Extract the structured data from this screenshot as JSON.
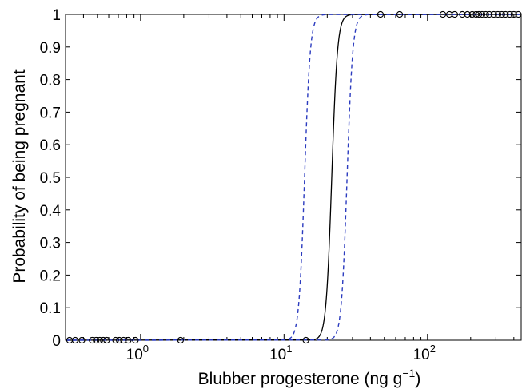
{
  "chart_data": {
    "type": "scatter",
    "title": "",
    "xlabel": "Blubber progesterone (ng g",
    "xlabel_superscript": "−1",
    "xlabel_suffix": ")",
    "ylabel": "Probability of being pregnant",
    "xscale": "log",
    "xlim": [
      0.3,
      450
    ],
    "ylim": [
      0,
      1
    ],
    "x_ticks": [
      {
        "value": 1,
        "base": "10",
        "exp": "0"
      },
      {
        "value": 10,
        "base": "10",
        "exp": "1"
      },
      {
        "value": 100,
        "base": "10",
        "exp": "2"
      }
    ],
    "y_ticks": [
      "0",
      "0.1",
      "0.2",
      "0.3",
      "0.4",
      "0.5",
      "0.6",
      "0.7",
      "0.8",
      "0.9",
      "1"
    ],
    "grid": false,
    "legend": "none",
    "series": [
      {
        "style": "solid",
        "color": "#000000",
        "curve": "logistic",
        "midpoint_x": 21.5,
        "steepness": 22,
        "x_range": [
          16,
          30
        ]
      },
      {
        "style": "dashed",
        "color": "#2b3bbf",
        "curve": "logistic",
        "midpoint_x": 13.9,
        "steepness": 22,
        "x_range": [
          10,
          20
        ]
      },
      {
        "style": "dashed",
        "color": "#2b3bbf",
        "curve": "logistic",
        "midpoint_x": 27.5,
        "steepness": 22,
        "x_range": [
          20,
          38
        ]
      },
      {
        "style": "markers",
        "marker": "open-circle",
        "color": "#000000",
        "points": [
          {
            "x": 0.32,
            "y": 0
          },
          {
            "x": 0.35,
            "y": 0
          },
          {
            "x": 0.39,
            "y": 0
          },
          {
            "x": 0.46,
            "y": 0
          },
          {
            "x": 0.49,
            "y": 0
          },
          {
            "x": 0.52,
            "y": 0
          },
          {
            "x": 0.55,
            "y": 0
          },
          {
            "x": 0.58,
            "y": 0
          },
          {
            "x": 0.67,
            "y": 0
          },
          {
            "x": 0.71,
            "y": 0
          },
          {
            "x": 0.76,
            "y": 0
          },
          {
            "x": 0.82,
            "y": 0
          },
          {
            "x": 0.92,
            "y": 0
          },
          {
            "x": 1.9,
            "y": 0
          },
          {
            "x": 14.2,
            "y": 0
          },
          {
            "x": 47,
            "y": 1
          },
          {
            "x": 64,
            "y": 1
          },
          {
            "x": 128,
            "y": 1
          },
          {
            "x": 142,
            "y": 1
          },
          {
            "x": 155,
            "y": 1
          },
          {
            "x": 175,
            "y": 1
          },
          {
            "x": 190,
            "y": 1
          },
          {
            "x": 205,
            "y": 1
          },
          {
            "x": 218,
            "y": 1
          },
          {
            "x": 228,
            "y": 1
          },
          {
            "x": 240,
            "y": 1
          },
          {
            "x": 255,
            "y": 1
          },
          {
            "x": 270,
            "y": 1
          },
          {
            "x": 290,
            "y": 1
          },
          {
            "x": 310,
            "y": 1
          },
          {
            "x": 330,
            "y": 1
          },
          {
            "x": 350,
            "y": 1
          },
          {
            "x": 375,
            "y": 1
          },
          {
            "x": 400,
            "y": 1
          },
          {
            "x": 430,
            "y": 1
          }
        ]
      }
    ]
  }
}
